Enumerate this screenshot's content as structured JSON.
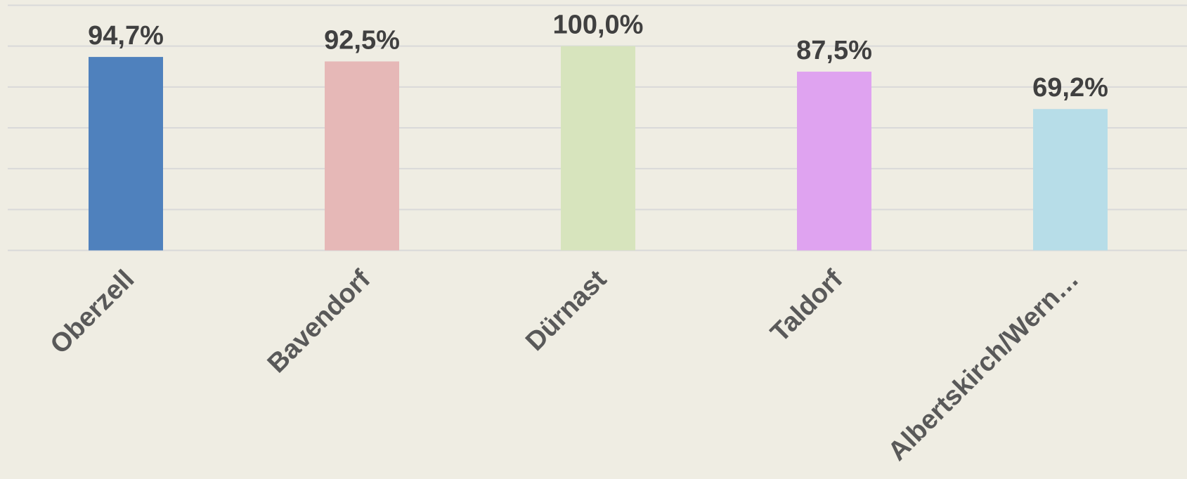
{
  "chart_data": {
    "type": "bar",
    "categories": [
      "Oberzell",
      "Bavendorf",
      "Dürnast",
      "Taldorf",
      "Albertskirch/Wern…"
    ],
    "values": [
      94.7,
      92.5,
      100,
      87.5,
      69.2
    ],
    "value_labels": [
      "94,7%",
      "92,5%",
      "100,0%",
      "87,5%",
      "69,2%"
    ],
    "colors": [
      "#4f81bd",
      "#e6b8b7",
      "#d7e4bd",
      "#dfa3f0",
      "#b7dde8"
    ],
    "ylim": [
      0,
      120
    ],
    "yticks": [
      0,
      20,
      40,
      60,
      80,
      100,
      120
    ],
    "grid": true
  }
}
